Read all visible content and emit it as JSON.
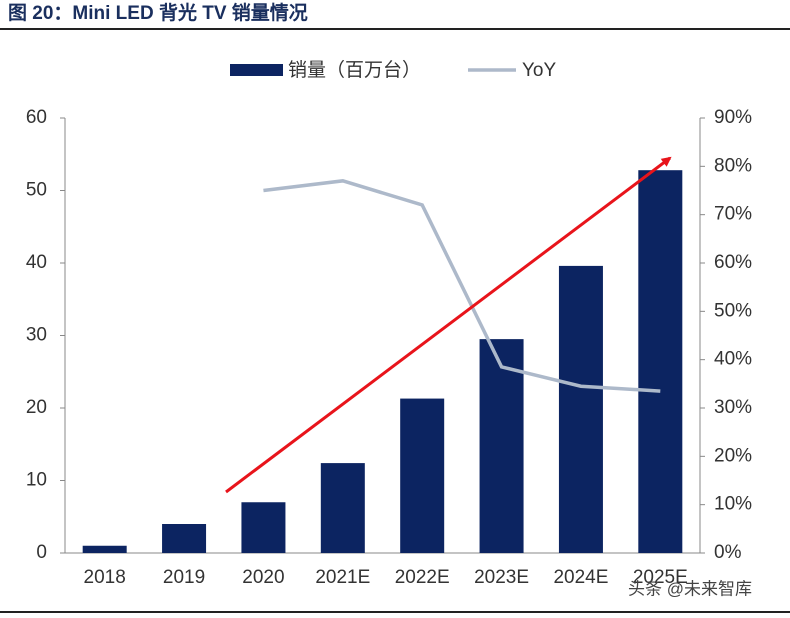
{
  "chart_data": {
    "type": "bar",
    "title": "图 20：Mini LED 背光 TV 销量情况",
    "watermark": "头条 @未来智库",
    "categories": [
      "2018",
      "2019",
      "2020",
      "2021E",
      "2022E",
      "2023E",
      "2024E",
      "2025E"
    ],
    "series": [
      {
        "name": "销量（百万台）",
        "color": "#0c2461",
        "type": "bar",
        "values": [
          1,
          4,
          7,
          12.4,
          21.3,
          29.5,
          39.6,
          52.8
        ]
      },
      {
        "name": "YoY",
        "color": "#adb9ca",
        "type": "line",
        "axis": "y2",
        "values": [
          null,
          null,
          75,
          77,
          72,
          38.5,
          34.5,
          33.5
        ]
      }
    ],
    "ylim": [
      0,
      60
    ],
    "yticks": [
      0,
      10,
      20,
      30,
      40,
      50,
      60
    ],
    "y2lim": [
      0,
      90
    ],
    "y2ticks": [
      {
        "value": 0,
        "label": "0%"
      },
      {
        "value": 10,
        "label": "10%"
      },
      {
        "value": 20,
        "label": "20%"
      },
      {
        "value": 30,
        "label": "30%"
      },
      {
        "value": 40,
        "label": "40%"
      },
      {
        "value": 50,
        "label": "50%"
      },
      {
        "value": 60,
        "label": "60%"
      },
      {
        "value": 70,
        "label": "70%"
      },
      {
        "value": 80,
        "label": "80%"
      },
      {
        "value": 90,
        "label": "90%"
      }
    ],
    "grid": false
  }
}
